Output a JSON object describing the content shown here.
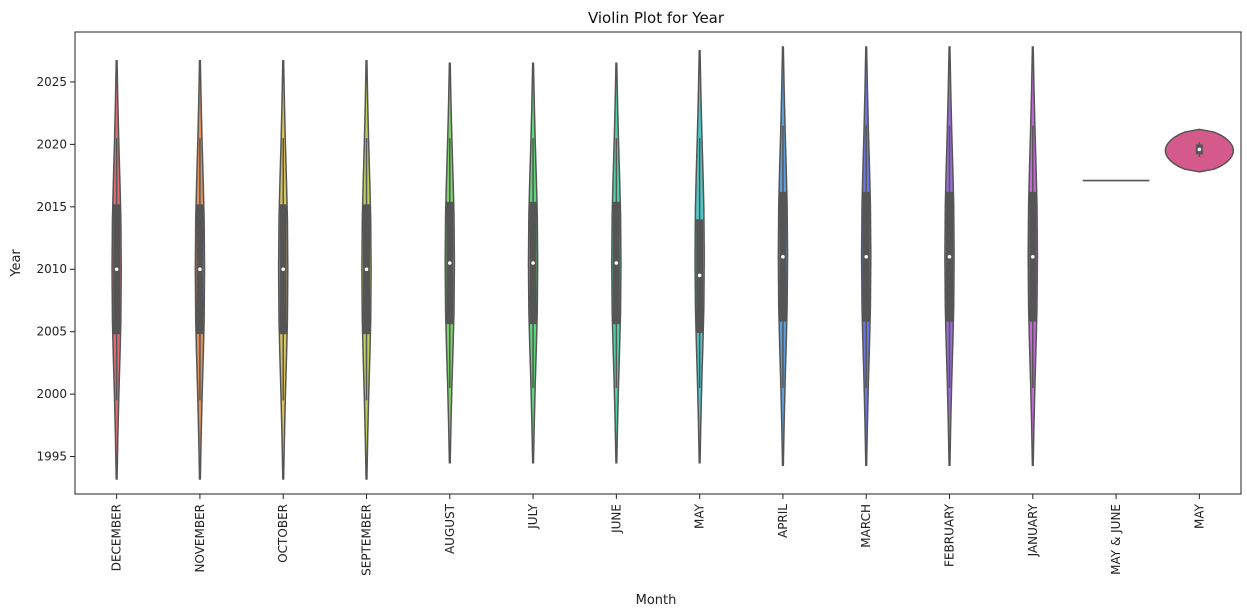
{
  "chart_data": {
    "type": "violin",
    "title": "Violin Plot for Year",
    "xlabel": "Month",
    "ylabel": "Year",
    "ylim": [
      1992,
      2029
    ],
    "yticks": [
      1995,
      2000,
      2005,
      2010,
      2015,
      2020,
      2025
    ],
    "grid": false,
    "categories": [
      "DECEMBER",
      "NOVEMBER",
      "OCTOBER",
      "SEPTEMBER",
      "AUGUST",
      "JULY",
      "JUNE",
      "MAY",
      "APRIL",
      "MARCH",
      "FEBRUARY",
      "JANUARY",
      "MAY & JUNE",
      "MAY"
    ],
    "colors": [
      "#e06c75",
      "#e0925a",
      "#d8c25a",
      "#b9d35a",
      "#7ed36a",
      "#5ed67a",
      "#4fd3a5",
      "#4fc7c7",
      "#5c9fdc",
      "#6c78e0",
      "#9a6cde",
      "#c46ad6",
      "#d05ec0",
      "#d45a8c"
    ],
    "violins": [
      {
        "min": 1993.2,
        "max": 2026.7,
        "q1": 2004.8,
        "median": 2010,
        "q3": 2015.2,
        "whisker_low": 1999.5,
        "whisker_high": 2020.5
      },
      {
        "min": 1993.2,
        "max": 2026.7,
        "q1": 2004.8,
        "median": 2010,
        "q3": 2015.2,
        "whisker_low": 1999.5,
        "whisker_high": 2020.5
      },
      {
        "min": 1993.2,
        "max": 2026.7,
        "q1": 2004.8,
        "median": 2010,
        "q3": 2015.2,
        "whisker_low": 1999.5,
        "whisker_high": 2020.5
      },
      {
        "min": 1993.2,
        "max": 2026.7,
        "q1": 2004.8,
        "median": 2010,
        "q3": 2015.2,
        "whisker_low": 1999.5,
        "whisker_high": 2020.5
      },
      {
        "min": 1994.5,
        "max": 2026.5,
        "q1": 2005.6,
        "median": 2010.5,
        "q3": 2015.4,
        "whisker_low": 2000.5,
        "whisker_high": 2020.5
      },
      {
        "min": 1994.5,
        "max": 2026.5,
        "q1": 2005.6,
        "median": 2010.5,
        "q3": 2015.4,
        "whisker_low": 2000.5,
        "whisker_high": 2020.5
      },
      {
        "min": 1994.5,
        "max": 2026.5,
        "q1": 2005.6,
        "median": 2010.5,
        "q3": 2015.4,
        "whisker_low": 2000.5,
        "whisker_high": 2020.5
      },
      {
        "min": 1994.5,
        "max": 2027.5,
        "q1": 2004.9,
        "median": 2009.5,
        "q3": 2014.0,
        "whisker_low": 2000.5,
        "whisker_high": 2020.5
      },
      {
        "min": 1994.3,
        "max": 2027.8,
        "q1": 2005.8,
        "median": 2011,
        "q3": 2016.2,
        "whisker_low": 2000.5,
        "whisker_high": 2021.5
      },
      {
        "min": 1994.3,
        "max": 2027.8,
        "q1": 2005.8,
        "median": 2011,
        "q3": 2016.2,
        "whisker_low": 2000.5,
        "whisker_high": 2021.5
      },
      {
        "min": 1994.3,
        "max": 2027.8,
        "q1": 2005.8,
        "median": 2011,
        "q3": 2016.2,
        "whisker_low": 2000.5,
        "whisker_high": 2021.5
      },
      {
        "min": 1994.3,
        "max": 2027.8,
        "q1": 2005.8,
        "median": 2011,
        "q3": 2016.2,
        "whisker_low": 2000.5,
        "whisker_high": 2021.5
      },
      {
        "single_value": 2017.1
      },
      {
        "min": 2017.8,
        "max": 2021.2,
        "q1": 2019.2,
        "median": 2019.6,
        "q3": 2020.0,
        "whisker_low": 2019.0,
        "whisker_high": 2020.2,
        "wide": true
      }
    ]
  }
}
